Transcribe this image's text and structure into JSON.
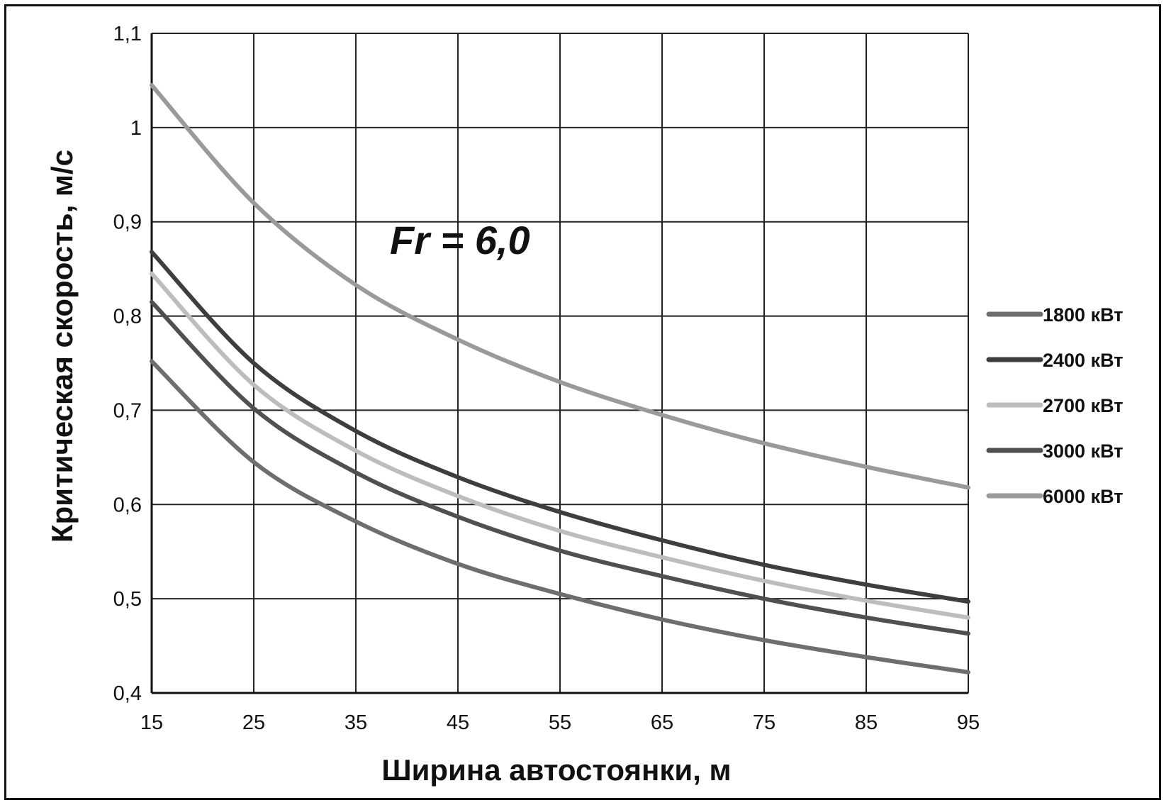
{
  "chart_data": {
    "type": "line",
    "title": "",
    "annotation": "Fr = 6,0",
    "xlabel": "Ширина автостоянки, м",
    "ylabel": "Критическая скорость, м/с",
    "xlim": [
      15,
      95
    ],
    "ylim": [
      0.4,
      1.1
    ],
    "x_ticks": [
      "15",
      "25",
      "35",
      "45",
      "55",
      "65",
      "75",
      "85",
      "95"
    ],
    "y_ticks": [
      "0,4",
      "0,5",
      "0,6",
      "0,7",
      "0,8",
      "0,9",
      "1",
      "1,1"
    ],
    "grid": true,
    "legend_position": "right",
    "x": [
      15,
      25,
      35,
      45,
      55,
      65,
      75,
      85,
      95
    ],
    "series": [
      {
        "name": "1800 кВт",
        "color": "#6e6e6e",
        "values": [
          0.752,
          0.645,
          0.582,
          0.537,
          0.505,
          0.478,
          0.456,
          0.438,
          0.422
        ]
      },
      {
        "name": "2400 кВт",
        "color": "#3e3e3e",
        "values": [
          0.868,
          0.75,
          0.678,
          0.629,
          0.592,
          0.562,
          0.536,
          0.515,
          0.497
        ]
      },
      {
        "name": "2700 кВт",
        "color": "#bdbdbd",
        "values": [
          0.845,
          0.727,
          0.657,
          0.609,
          0.572,
          0.544,
          0.519,
          0.498,
          0.48
        ]
      },
      {
        "name": "3000 кВт",
        "color": "#505050",
        "values": [
          0.815,
          0.702,
          0.634,
          0.587,
          0.551,
          0.524,
          0.5,
          0.48,
          0.463
        ]
      },
      {
        "name": "6000 кВт",
        "color": "#9a9a9a",
        "values": [
          1.045,
          0.92,
          0.833,
          0.775,
          0.73,
          0.695,
          0.665,
          0.64,
          0.618
        ]
      }
    ]
  }
}
